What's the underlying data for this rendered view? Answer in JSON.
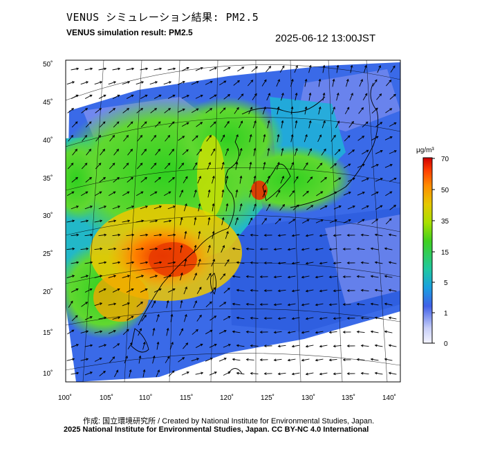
{
  "title_jp": "VENUS シミュレーション結果: PM2.5",
  "title_en": "VENUS simulation result: PM2.5",
  "timestamp": "2025-06-12 13:00JST",
  "axes": {
    "lat_labels": [
      "50˚",
      "45˚",
      "40˚",
      "35˚",
      "30˚",
      "25˚",
      "20˚",
      "15˚",
      "10˚"
    ],
    "lon_labels": [
      "100˚",
      "105˚",
      "110˚",
      "115˚",
      "120˚",
      "125˚",
      "130˚",
      "135˚",
      "140˚"
    ]
  },
  "colorbar": {
    "unit": "μg/m³",
    "tick_labels": [
      "70",
      "50",
      "35",
      "15",
      "5",
      "1",
      "0"
    ],
    "colors": [
      "#d00000",
      "#ff4000",
      "#ff8c00",
      "#e6c800",
      "#a8e000",
      "#40d020",
      "#20c8a0",
      "#1aa0e0",
      "#2060e0",
      "#4060e8",
      "#8898f0",
      "#c8cff8",
      "#f4f4ff"
    ]
  },
  "credit_line1": "作成: 国立環境研究所 / Created by National Institute for Environmental Studies, Japan.",
  "credit_line2": "2025 National Institute for Environmental Studies, Japan. CC BY-NC 4.0 International"
}
